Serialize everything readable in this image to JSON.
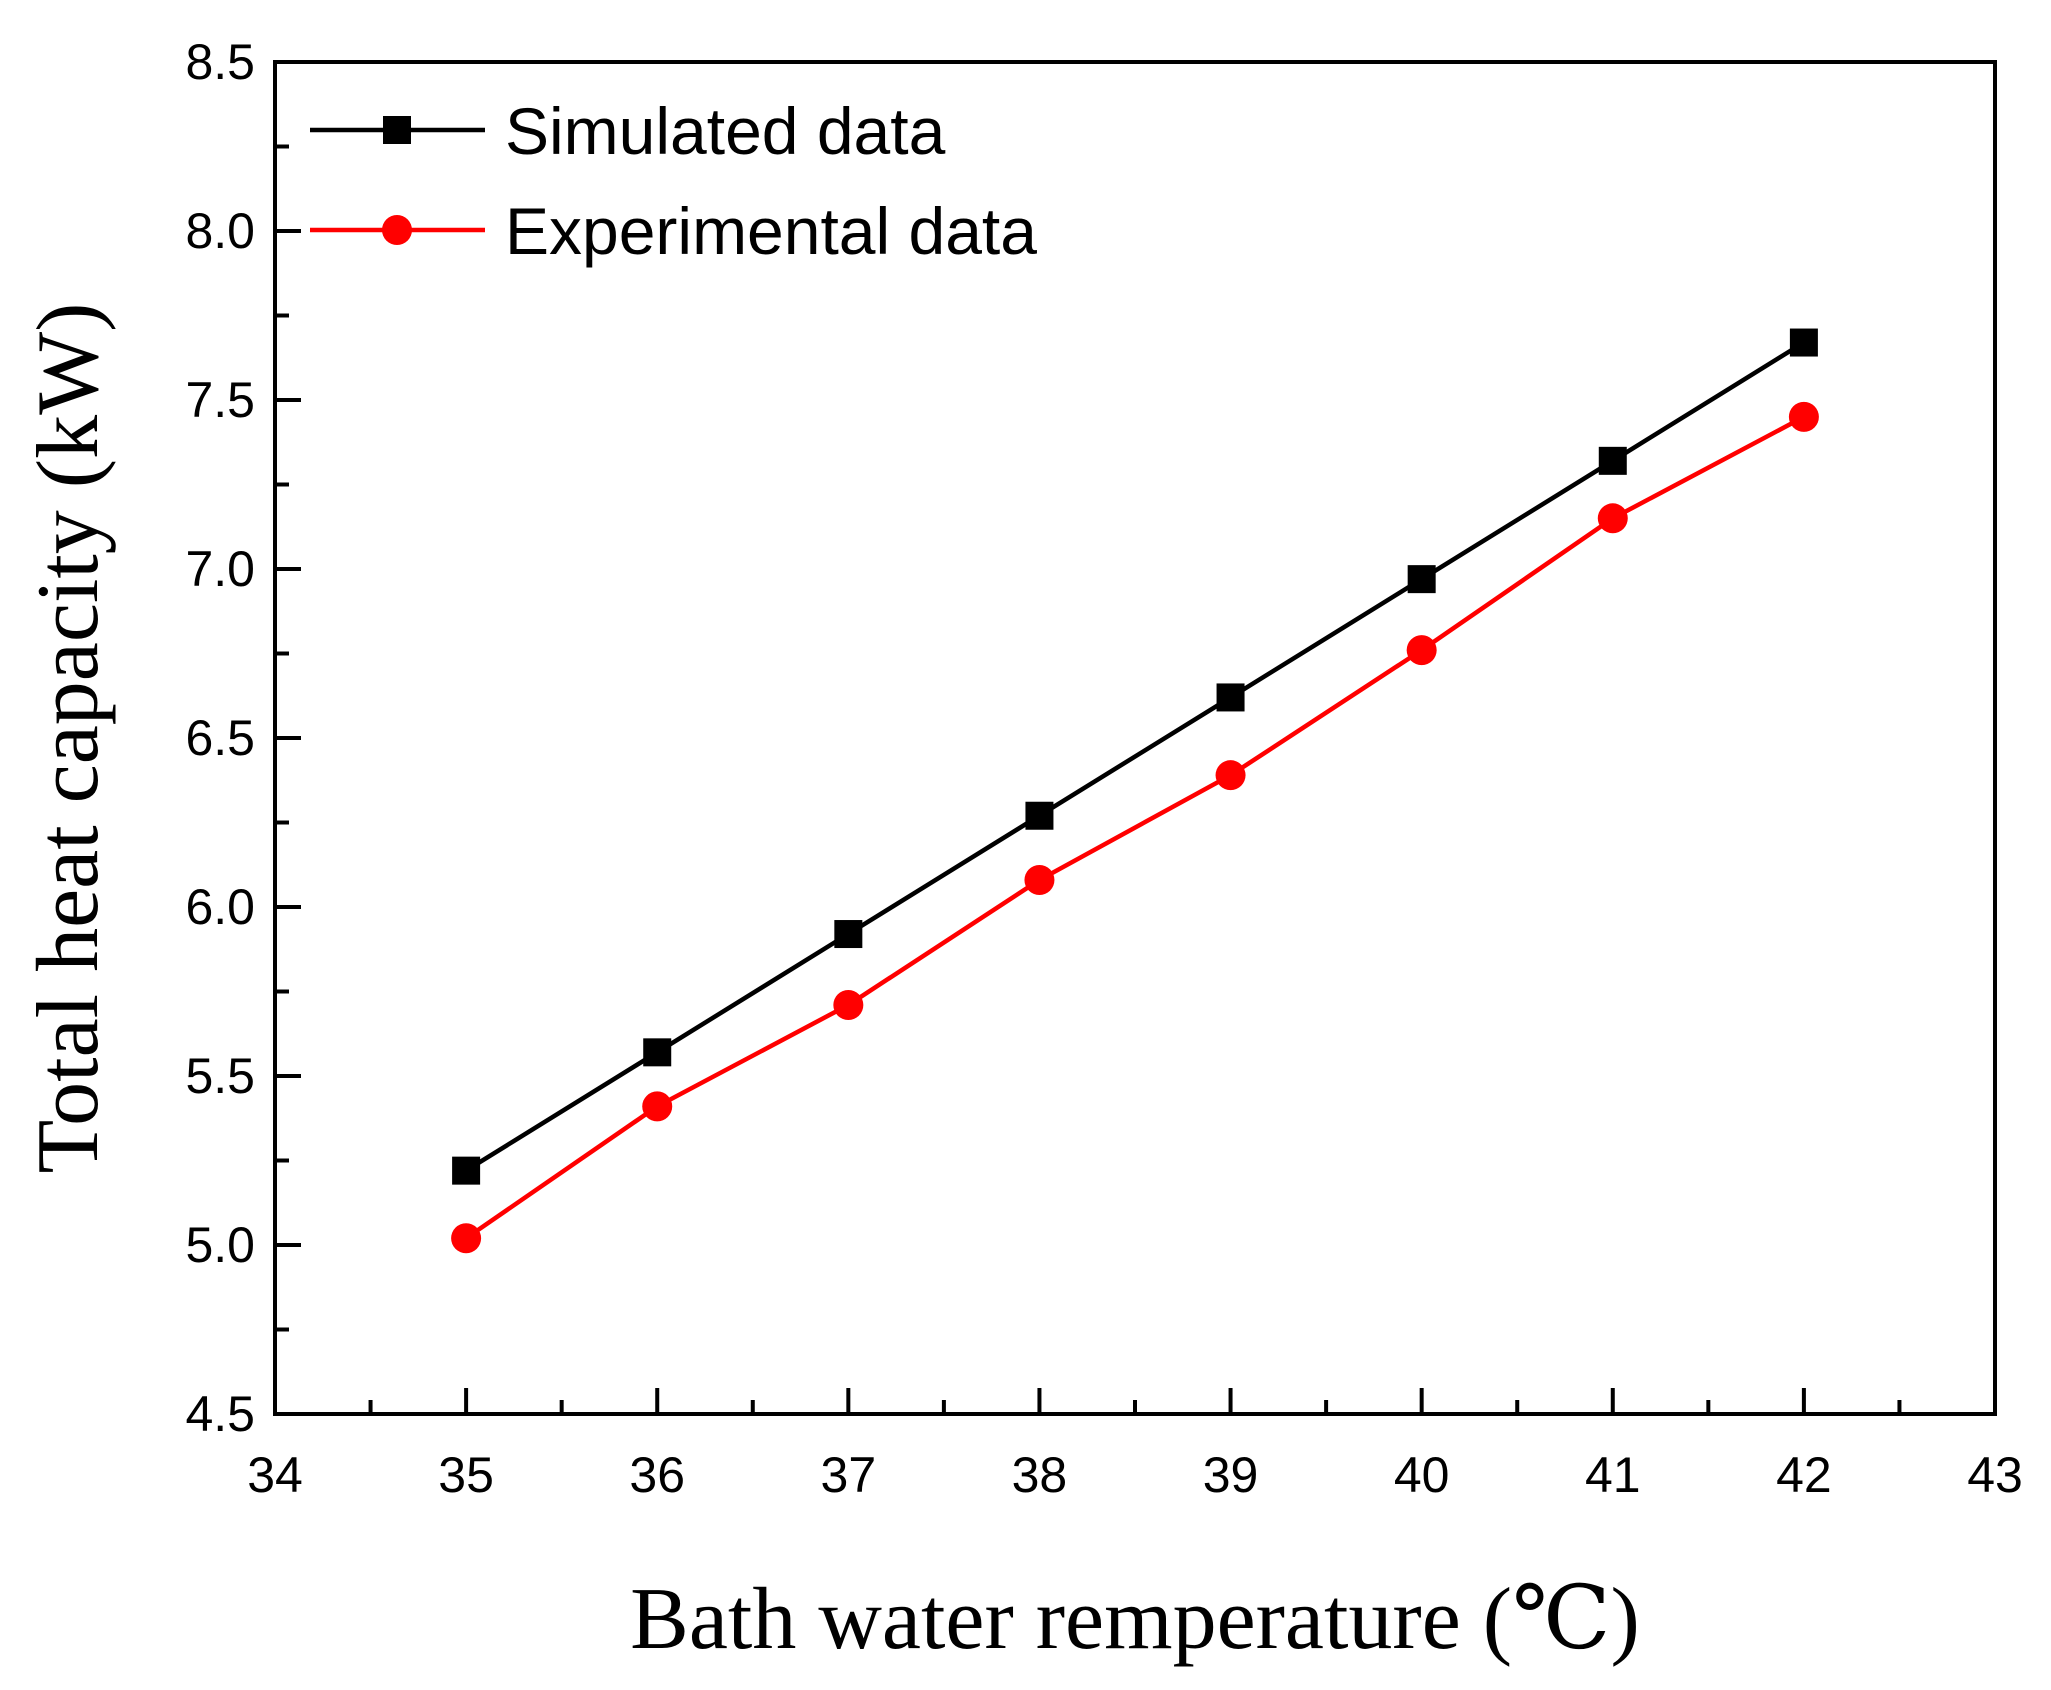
{
  "chart_data": {
    "type": "line",
    "title": "",
    "xlabel": "Bath water remperature (℃)",
    "ylabel": "Total heat capacity (kW)",
    "xlim": [
      34,
      43
    ],
    "ylim": [
      4.5,
      8.5
    ],
    "x_ticks": [
      34,
      35,
      36,
      37,
      38,
      39,
      40,
      41,
      42,
      43
    ],
    "y_ticks": [
      4.5,
      5.0,
      5.5,
      6.0,
      6.5,
      7.0,
      7.5,
      8.0,
      8.5
    ],
    "x_tick_labels": [
      "34",
      "35",
      "36",
      "37",
      "38",
      "39",
      "40",
      "41",
      "42",
      "43"
    ],
    "y_tick_labels": [
      "4.5",
      "5.0",
      "5.5",
      "6.0",
      "6.5",
      "7.0",
      "7.5",
      "8.0",
      "8.5"
    ],
    "grid": false,
    "legend_position": "top-left",
    "series": [
      {
        "name": "Simulated data",
        "color": "#000000",
        "marker": "square",
        "x": [
          35,
          36,
          37,
          38,
          39,
          40,
          41,
          42
        ],
        "values": [
          5.22,
          5.57,
          5.92,
          6.27,
          6.62,
          6.97,
          7.32,
          7.67
        ]
      },
      {
        "name": "Experimental data",
        "color": "#ff0000",
        "marker": "circle",
        "x": [
          35,
          36,
          37,
          38,
          39,
          40,
          41,
          42
        ],
        "values": [
          5.02,
          5.41,
          5.71,
          6.08,
          6.39,
          6.76,
          7.15,
          7.45
        ]
      }
    ]
  }
}
